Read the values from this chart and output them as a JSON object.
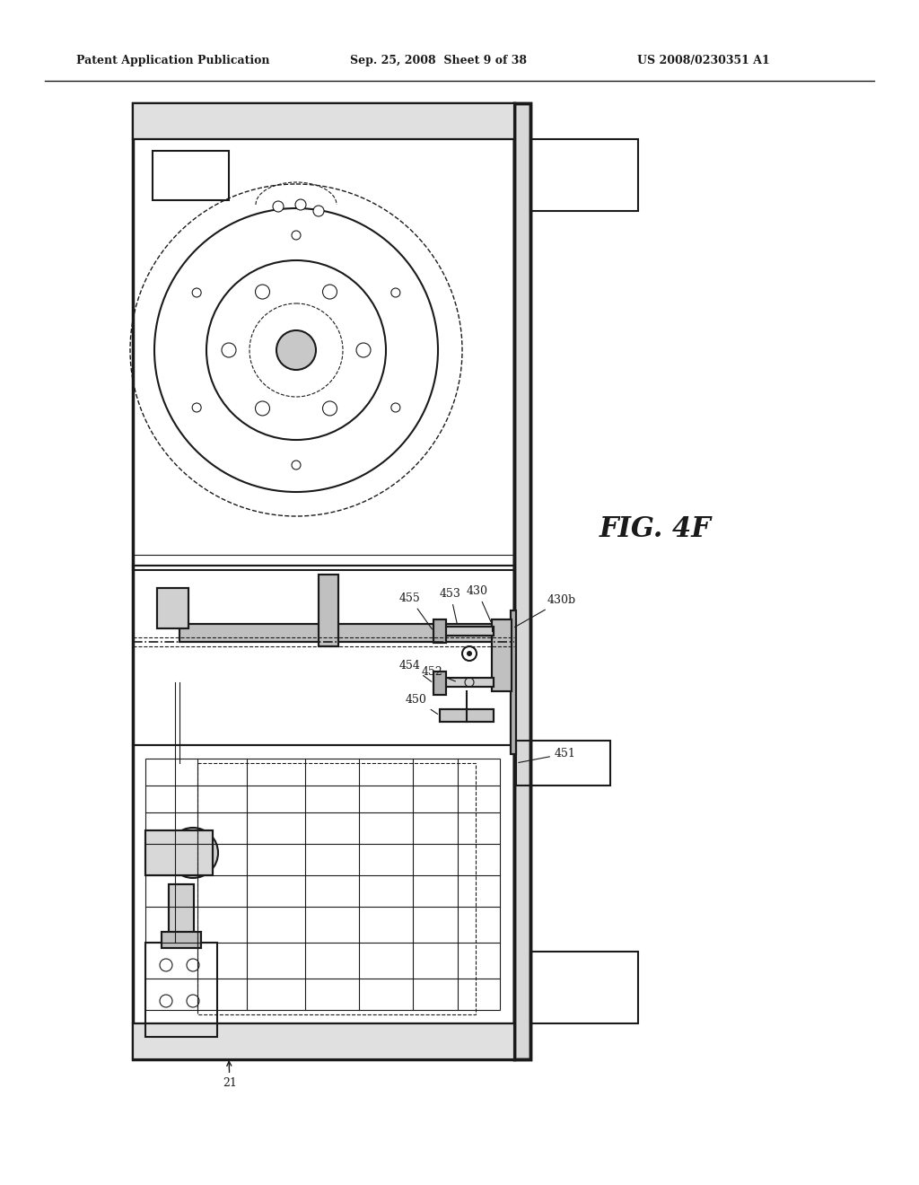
{
  "background_color": "#ffffff",
  "header_left": "Patent Application Publication",
  "header_center": "Sep. 25, 2008  Sheet 9 of 38",
  "header_right": "US 2008/0230351 A1",
  "figure_label": "FIG. 4F",
  "line_color": "#1a1a1a",
  "text_color": "#1a1a1a"
}
